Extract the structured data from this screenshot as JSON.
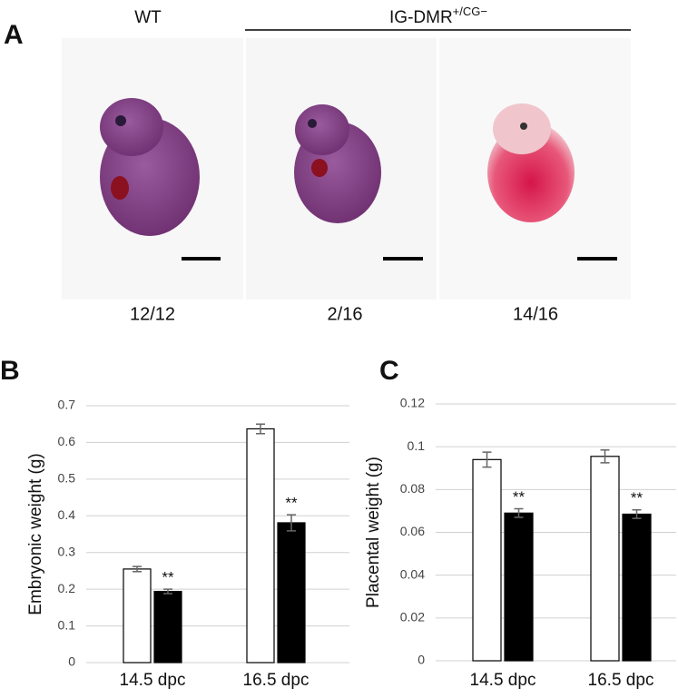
{
  "panel_a": {
    "panel_label": "A",
    "wt_label": "WT",
    "mutant_label": "IG-DMR",
    "mutant_superscript": "+/CG−",
    "counts": [
      "12/12",
      "2/16",
      "14/16"
    ]
  },
  "chart_data": [
    {
      "type": "bar",
      "panel_label": "B",
      "y_label": "Embryonic weight (g)",
      "categories": [
        "14.5 dpc",
        "16.5 dpc"
      ],
      "series": [
        {
          "color": "#ffffff",
          "values": [
            0.255,
            0.637
          ],
          "errors": [
            0.007,
            0.013
          ]
        },
        {
          "color": "#000000",
          "values": [
            0.194,
            0.381
          ],
          "errors": [
            0.006,
            0.022
          ],
          "significance": [
            "**",
            "**"
          ]
        }
      ],
      "ylim": [
        0,
        0.7
      ],
      "yticks": [
        0,
        0.1,
        0.2,
        0.3,
        0.4,
        0.5,
        0.6,
        0.7
      ],
      "grid": true
    },
    {
      "type": "bar",
      "panel_label": "C",
      "y_label": "Placental weight (g)",
      "categories": [
        "14.5 dpc",
        "16.5 dpc"
      ],
      "series": [
        {
          "color": "#ffffff",
          "values": [
            0.094,
            0.0955
          ],
          "errors": [
            0.0035,
            0.003
          ]
        },
        {
          "color": "#000000",
          "values": [
            0.069,
            0.0685
          ],
          "errors": [
            0.002,
            0.002
          ],
          "significance": [
            "**",
            "**"
          ]
        }
      ],
      "ylim": [
        0,
        0.12
      ],
      "yticks": [
        0,
        0.02,
        0.04,
        0.06,
        0.08,
        0.1,
        0.12
      ],
      "grid": true
    }
  ]
}
